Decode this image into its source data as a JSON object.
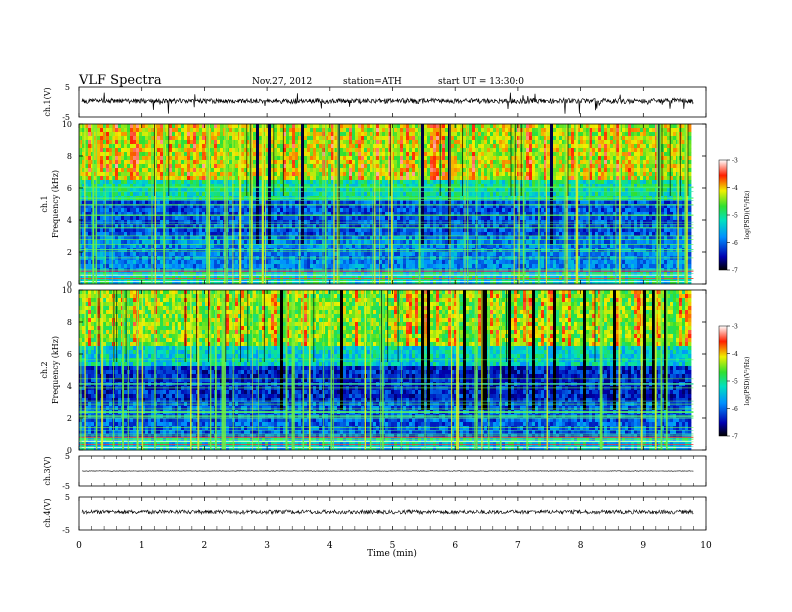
{
  "header": {
    "title": "VLF Spectra",
    "date": "Nov.27, 2012",
    "station": "station=ATH",
    "start": "start UT = 13:30:0"
  },
  "xaxis": {
    "label": "Time (min)",
    "ticks": [
      "0",
      "1",
      "2",
      "3",
      "4",
      "5",
      "6",
      "7",
      "8",
      "9",
      "10"
    ]
  },
  "colorbar_ticks": [
    "-3",
    "-4",
    "-5",
    "-6",
    "-7"
  ],
  "colorbar_label": "log(PSD)(V²/Hz)",
  "chart_data": [
    {
      "id": "ch1-waveform",
      "type": "line",
      "ylabel": "ch.1(V)",
      "yticks": [
        "5",
        "-5"
      ],
      "ylim": [
        -5,
        5
      ],
      "xlim": [
        0,
        10
      ]
    },
    {
      "id": "ch1-spectrogram",
      "type": "heatmap",
      "ylabel": "ch.1",
      "ylabel2": "Frequency (kHz)",
      "yticks": [
        "0",
        "2",
        "4",
        "6",
        "8",
        "10"
      ],
      "ylim": [
        0,
        10
      ],
      "xlim": [
        0,
        10
      ],
      "color_range": [
        -7,
        -3
      ]
    },
    {
      "id": "ch2-spectrogram",
      "type": "heatmap",
      "ylabel": "ch.2",
      "ylabel2": "Frequency (kHz)",
      "yticks": [
        "0",
        "2",
        "4",
        "6",
        "8",
        "10"
      ],
      "ylim": [
        0,
        10
      ],
      "xlim": [
        0,
        10
      ],
      "color_range": [
        -7,
        -3
      ]
    },
    {
      "id": "ch3-waveform",
      "type": "line",
      "ylabel": "ch.3(V)",
      "yticks": [
        "5",
        "-5"
      ],
      "ylim": [
        -5,
        5
      ],
      "xlim": [
        0,
        10
      ]
    },
    {
      "id": "ch4-waveform",
      "type": "line",
      "ylabel": "ch.4(V)",
      "yticks": [
        "5",
        "-5"
      ],
      "ylim": [
        -5,
        5
      ],
      "xlim": [
        0,
        10
      ]
    }
  ]
}
